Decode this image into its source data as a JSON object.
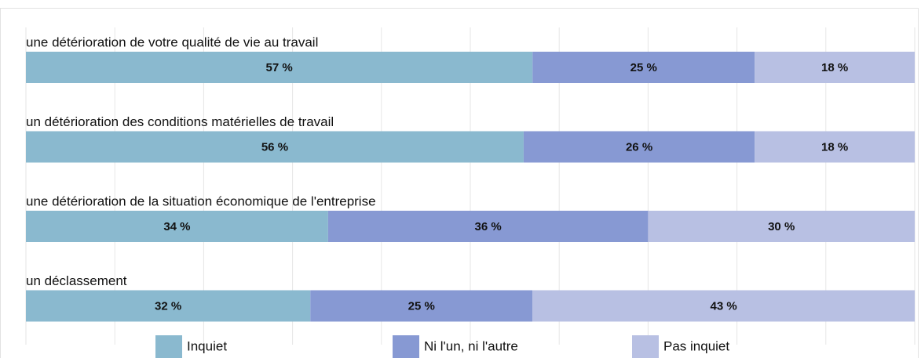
{
  "chart_data": {
    "type": "bar",
    "orientation": "horizontal",
    "stacked": true,
    "categories": [
      "une détérioration de votre qualité de vie au travail",
      "un détérioration des conditions matérielles de travail",
      "une détérioration de la situation économique de l'entreprise",
      "un déclassement"
    ],
    "series": [
      {
        "name": "Inquiet",
        "color": "#8ab9cf",
        "values": [
          57,
          56,
          34,
          32
        ],
        "value_labels": [
          "57 %",
          "56 %",
          "34 %",
          "32 %"
        ]
      },
      {
        "name": "Ni l'un, ni l'autre",
        "color": "#8799d3",
        "values": [
          25,
          26,
          36,
          25
        ],
        "value_labels": [
          "25 %",
          "26 %",
          "36 %",
          "25 %"
        ]
      },
      {
        "name": "Pas inquiet",
        "color": "#b8c0e3",
        "values": [
          18,
          18,
          30,
          43
        ],
        "value_labels": [
          "18 %",
          "18 %",
          "30 %",
          "43 %"
        ]
      }
    ],
    "xlim": [
      0,
      100
    ],
    "xticks": [
      0,
      10,
      20,
      30,
      40,
      50,
      60,
      70,
      80,
      90,
      100
    ],
    "grid": true,
    "legend": "bottom"
  }
}
